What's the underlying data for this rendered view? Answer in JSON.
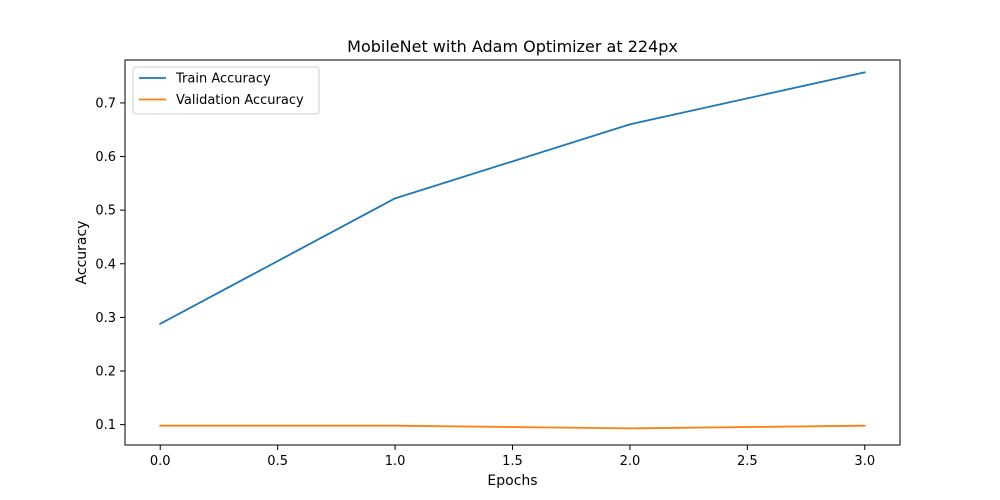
{
  "chart_data": {
    "type": "line",
    "title": "MobileNet with Adam Optimizer at 224px",
    "xlabel": "Epochs",
    "ylabel": "Accuracy",
    "x": [
      0,
      1,
      2,
      3
    ],
    "xlim": [
      -0.15,
      3.15
    ],
    "ylim": [
      0.062,
      0.78
    ],
    "xticks": [
      0.0,
      0.5,
      1.0,
      1.5,
      2.0,
      2.5,
      3.0
    ],
    "xtick_labels": [
      "0.0",
      "0.5",
      "1.0",
      "1.5",
      "2.0",
      "2.5",
      "3.0"
    ],
    "yticks": [
      0.1,
      0.2,
      0.3,
      0.4,
      0.5,
      0.6,
      0.7
    ],
    "ytick_labels": [
      "0.1",
      "0.2",
      "0.3",
      "0.4",
      "0.5",
      "0.6",
      "0.7"
    ],
    "grid": false,
    "legend_position": "top-left",
    "series": [
      {
        "name": "Train Accuracy",
        "color": "#1f77b4",
        "values": [
          0.288,
          0.522,
          0.66,
          0.757
        ]
      },
      {
        "name": "Validation Accuracy",
        "color": "#ff7f0e",
        "values": [
          0.098,
          0.098,
          0.093,
          0.098
        ]
      }
    ]
  }
}
